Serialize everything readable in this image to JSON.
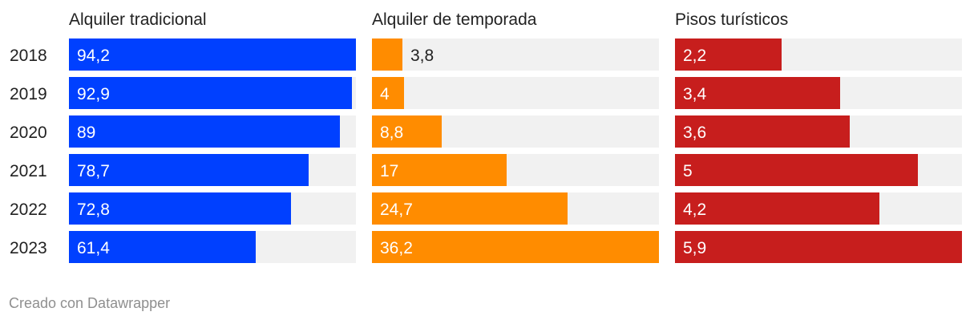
{
  "chart_data": {
    "type": "bar",
    "orientation": "horizontal",
    "categories": [
      "2018",
      "2019",
      "2020",
      "2021",
      "2022",
      "2023"
    ],
    "series": [
      {
        "name": "Alquiler tradicional",
        "color": "#0040ff",
        "max": 94.2,
        "values": [
          94.2,
          92.9,
          89,
          78.7,
          72.8,
          61.4
        ],
        "labels": [
          "94,2",
          "92,9",
          "89",
          "78,7",
          "72,8",
          "61,4"
        ]
      },
      {
        "name": "Alquiler de temporada",
        "color": "#ff8c00",
        "max": 36.2,
        "values": [
          3.8,
          4,
          8.8,
          17,
          24.7,
          36.2
        ],
        "labels": [
          "3,8",
          "4",
          "8,8",
          "17",
          "24,7",
          "36,2"
        ]
      },
      {
        "name": "Pisos turísticos",
        "color": "#c71e1d",
        "max": 5.9,
        "values": [
          2.2,
          3.4,
          3.6,
          5,
          4.2,
          5.9
        ],
        "labels": [
          "2,2",
          "3,4",
          "3,6",
          "5",
          "4,2",
          "5,9"
        ]
      }
    ],
    "track_color": "#f1f1f1"
  },
  "footer": {
    "credit": "Creado con Datawrapper"
  }
}
